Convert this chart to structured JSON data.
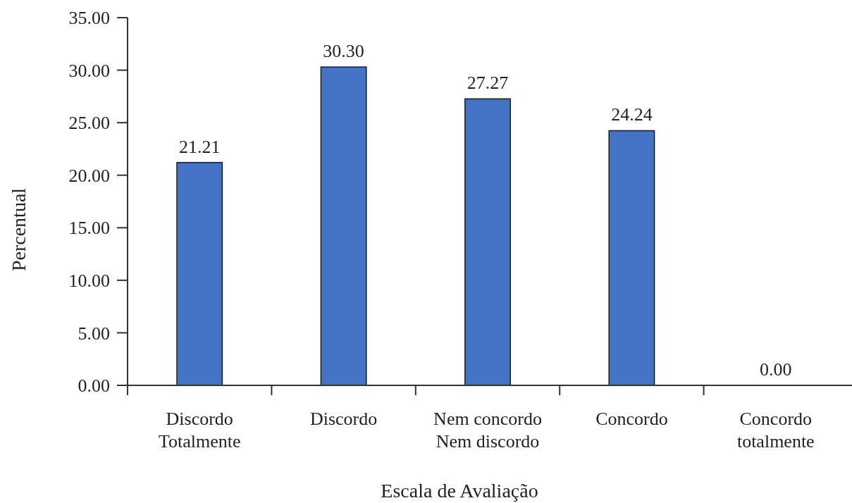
{
  "chart_data": {
    "type": "bar",
    "categories": [
      "Discordo\nTotalmente",
      "Discordo",
      "Nem concordo\nNem discordo",
      "Concordo",
      "Concordo\ntotalmente"
    ],
    "values": [
      21.21,
      30.3,
      27.27,
      24.24,
      0.0
    ],
    "value_labels": [
      "21.21",
      "30.30",
      "27.27",
      "24.24",
      "0.00"
    ],
    "color": "#4472c4",
    "xlabel": "Escala de Avaliação",
    "ylabel": "Percentual",
    "ylim": [
      0,
      35
    ],
    "yticks": [
      {
        "value": 0,
        "label": "0.00"
      },
      {
        "value": 5,
        "label": "5.00"
      },
      {
        "value": 10,
        "label": "10.00"
      },
      {
        "value": 15,
        "label": "15.00"
      },
      {
        "value": 20,
        "label": "20.00"
      },
      {
        "value": 25,
        "label": "25.00"
      },
      {
        "value": 30,
        "label": "30.00"
      },
      {
        "value": 35,
        "label": "35.00"
      }
    ],
    "grid": false
  }
}
